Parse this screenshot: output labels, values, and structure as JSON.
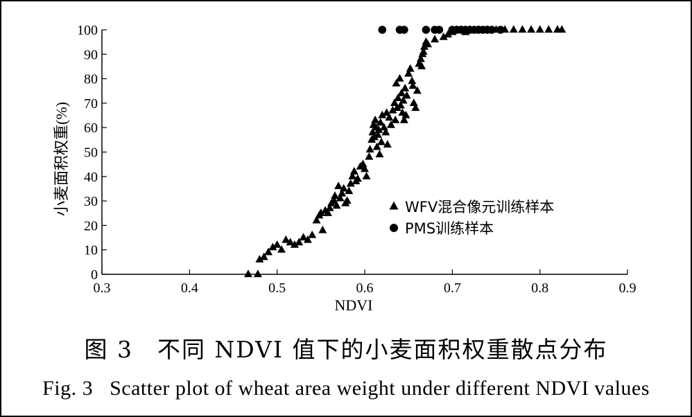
{
  "caption": {
    "zh": "图 3　不同 NDVI 值下的小麦面积权重散点分布",
    "en": "Fig. 3   Scatter plot of wheat area weight under different NDVI values"
  },
  "chart_data": {
    "type": "scatter",
    "xlabel": "NDVI",
    "ylabel": "小麦面积权重(%)",
    "xlim": [
      0.3,
      0.9
    ],
    "ylim": [
      0,
      100
    ],
    "xticks": [
      "0.3",
      "0.4",
      "0.5",
      "0.6",
      "0.7",
      "0.8",
      "0.9"
    ],
    "yticks": [
      "0",
      "10",
      "20",
      "30",
      "40",
      "50",
      "60",
      "70",
      "80",
      "90",
      "100"
    ],
    "grid": false,
    "legend_position": "center-right",
    "series": [
      {
        "name": "WFV混合像元训练样本",
        "marker": "triangle",
        "color": "#000000",
        "points": [
          [
            0.467,
            0
          ],
          [
            0.478,
            0
          ],
          [
            0.48,
            6
          ],
          [
            0.485,
            7
          ],
          [
            0.49,
            9
          ],
          [
            0.495,
            11
          ],
          [
            0.5,
            12
          ],
          [
            0.505,
            10
          ],
          [
            0.51,
            14
          ],
          [
            0.515,
            13
          ],
          [
            0.52,
            12
          ],
          [
            0.525,
            13
          ],
          [
            0.53,
            15
          ],
          [
            0.535,
            14
          ],
          [
            0.54,
            16
          ],
          [
            0.545,
            22
          ],
          [
            0.548,
            24
          ],
          [
            0.55,
            25
          ],
          [
            0.552,
            18
          ],
          [
            0.555,
            26
          ],
          [
            0.558,
            25
          ],
          [
            0.56,
            27
          ],
          [
            0.562,
            29
          ],
          [
            0.565,
            30
          ],
          [
            0.566,
            32
          ],
          [
            0.568,
            28
          ],
          [
            0.57,
            36
          ],
          [
            0.572,
            31
          ],
          [
            0.574,
            33
          ],
          [
            0.576,
            35
          ],
          [
            0.578,
            29
          ],
          [
            0.58,
            30
          ],
          [
            0.582,
            34
          ],
          [
            0.584,
            37
          ],
          [
            0.586,
            40
          ],
          [
            0.588,
            42
          ],
          [
            0.59,
            38
          ],
          [
            0.592,
            39
          ],
          [
            0.595,
            44
          ],
          [
            0.598,
            45
          ],
          [
            0.6,
            43
          ],
          [
            0.602,
            40
          ],
          [
            0.605,
            48
          ],
          [
            0.606,
            51
          ],
          [
            0.608,
            55
          ],
          [
            0.609,
            58
          ],
          [
            0.61,
            61
          ],
          [
            0.611,
            56
          ],
          [
            0.612,
            63
          ],
          [
            0.613,
            60
          ],
          [
            0.614,
            52
          ],
          [
            0.615,
            57
          ],
          [
            0.616,
            59
          ],
          [
            0.617,
            49
          ],
          [
            0.618,
            62
          ],
          [
            0.619,
            54
          ],
          [
            0.62,
            65
          ],
          [
            0.622,
            60
          ],
          [
            0.624,
            58
          ],
          [
            0.625,
            66
          ],
          [
            0.626,
            53
          ],
          [
            0.628,
            64
          ],
          [
            0.63,
            61
          ],
          [
            0.632,
            67
          ],
          [
            0.634,
            70
          ],
          [
            0.635,
            63
          ],
          [
            0.636,
            78
          ],
          [
            0.637,
            68
          ],
          [
            0.638,
            72
          ],
          [
            0.64,
            80
          ],
          [
            0.641,
            69
          ],
          [
            0.642,
            74
          ],
          [
            0.643,
            66
          ],
          [
            0.644,
            71
          ],
          [
            0.645,
            63
          ],
          [
            0.646,
            76
          ],
          [
            0.647,
            65
          ],
          [
            0.648,
            73
          ],
          [
            0.65,
            82
          ],
          [
            0.652,
            84
          ],
          [
            0.654,
            79
          ],
          [
            0.655,
            77
          ],
          [
            0.656,
            70
          ],
          [
            0.658,
            68
          ],
          [
            0.66,
            75
          ],
          [
            0.662,
            86
          ],
          [
            0.664,
            88
          ],
          [
            0.665,
            85
          ],
          [
            0.666,
            90
          ],
          [
            0.667,
            91
          ],
          [
            0.668,
            93
          ],
          [
            0.67,
            95
          ],
          [
            0.672,
            94
          ],
          [
            0.68,
            96
          ],
          [
            0.69,
            97
          ],
          [
            0.695,
            98
          ],
          [
            0.7,
            99
          ],
          [
            0.705,
            100
          ],
          [
            0.71,
            100
          ],
          [
            0.715,
            99
          ],
          [
            0.72,
            100
          ],
          [
            0.73,
            100
          ],
          [
            0.74,
            100
          ],
          [
            0.75,
            100
          ],
          [
            0.76,
            100
          ],
          [
            0.77,
            100
          ],
          [
            0.78,
            100
          ],
          [
            0.79,
            100
          ],
          [
            0.8,
            100
          ],
          [
            0.81,
            100
          ],
          [
            0.82,
            100
          ],
          [
            0.825,
            100
          ]
        ]
      },
      {
        "name": "PMS训练样本",
        "marker": "circle",
        "color": "#000000",
        "points": [
          [
            0.62,
            100
          ],
          [
            0.64,
            100
          ],
          [
            0.645,
            100
          ],
          [
            0.67,
            100
          ],
          [
            0.68,
            100
          ],
          [
            0.685,
            100
          ],
          [
            0.7,
            100
          ],
          [
            0.705,
            100
          ],
          [
            0.71,
            100
          ],
          [
            0.715,
            100
          ],
          [
            0.72,
            100
          ],
          [
            0.725,
            100
          ],
          [
            0.73,
            100
          ],
          [
            0.735,
            100
          ],
          [
            0.74,
            100
          ],
          [
            0.745,
            100
          ],
          [
            0.755,
            100
          ]
        ]
      }
    ]
  }
}
